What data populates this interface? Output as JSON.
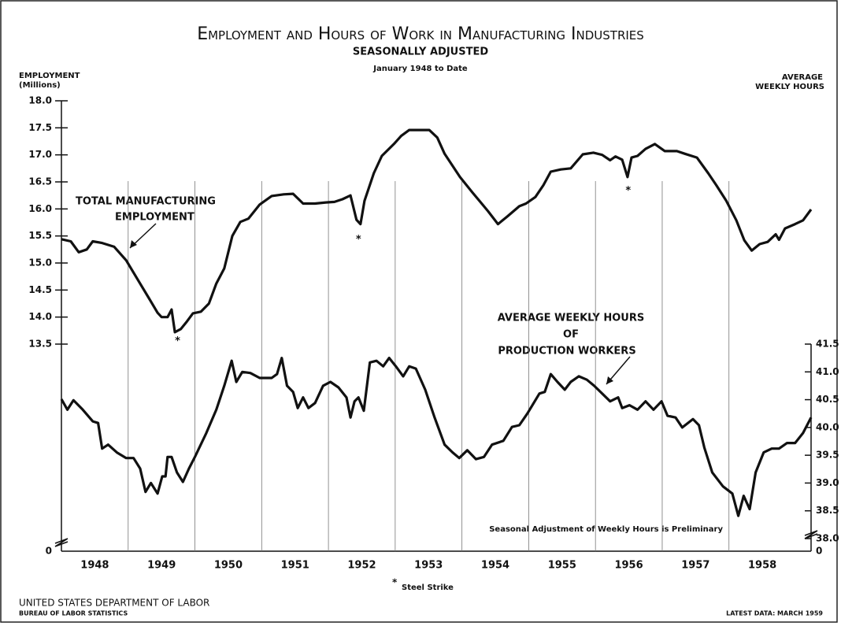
{
  "chart_data": {
    "type": "line",
    "title": "Employment and Hours of Work in Manufacturing Industries",
    "subtitle": "SEASONALLY ADJUSTED",
    "period": "January 1948 to Date",
    "ylabel": [
      "EMPLOYMENT",
      "(Millions)"
    ],
    "y2label": [
      "AVERAGE",
      "WEEKLY HOURS"
    ],
    "xlim": [
      1948.0,
      1959.23
    ],
    "xticks": [
      {
        "value": 1948.5,
        "label": "1948"
      },
      {
        "value": 1949.5,
        "label": "1949"
      },
      {
        "value": 1950.5,
        "label": "1950"
      },
      {
        "value": 1951.5,
        "label": "1951"
      },
      {
        "value": 1952.5,
        "label": "1952"
      },
      {
        "value": 1953.5,
        "label": "1953"
      },
      {
        "value": 1954.5,
        "label": "1954"
      },
      {
        "value": 1955.5,
        "label": "1955"
      },
      {
        "value": 1956.5,
        "label": "1956"
      },
      {
        "value": 1957.5,
        "label": "1957"
      },
      {
        "value": 1958.5,
        "label": "1958"
      }
    ],
    "year_lines": [
      1949,
      1950,
      1951,
      1952,
      1953,
      1954,
      1955,
      1956,
      1957,
      1958
    ],
    "ylim": [
      13.5,
      18.0
    ],
    "yticks": [
      13.5,
      {
        "value": 14,
        "label": "14.0"
      },
      14.5,
      {
        "value": 15,
        "label": "15.0"
      },
      15.5,
      {
        "value": 16,
        "label": "16.0"
      },
      16.5,
      {
        "value": 17,
        "label": "17.0"
      },
      17.5,
      {
        "value": 18,
        "label": "18.0"
      }
    ],
    "ybreak": 0,
    "y2lim": [
      38.0,
      41.5
    ],
    "y2ticks": [
      {
        "value": 38,
        "label": "38.0"
      },
      38.5,
      {
        "value": 39,
        "label": "39.0"
      },
      39.5,
      {
        "value": 40,
        "label": "40.0"
      },
      40.5,
      {
        "value": 41,
        "label": "41.0"
      },
      41.5
    ],
    "y2break": 0,
    "series": [
      {
        "label": [
          "TOTAL MANUFACTURING",
          "EMPLOYMENT"
        ],
        "color": "#111111",
        "axis": "y",
        "x": [
          1948.0,
          1948.14,
          1948.26,
          1948.38,
          1948.47,
          1948.61,
          1948.79,
          1948.97,
          1949.14,
          1949.32,
          1949.44,
          1949.5,
          1949.59,
          1949.65,
          1949.7,
          1949.79,
          1949.88,
          1949.97,
          1950.09,
          1950.21,
          1950.32,
          1950.44,
          1950.56,
          1950.68,
          1950.8,
          1950.97,
          1951.15,
          1951.33,
          1951.47,
          1951.62,
          1951.8,
          1951.96,
          1952.09,
          1952.21,
          1952.33,
          1952.42,
          1952.48,
          1952.54,
          1952.68,
          1952.8,
          1952.98,
          1953.09,
          1953.21,
          1953.51,
          1953.63,
          1953.74,
          1953.97,
          1954.16,
          1954.39,
          1954.54,
          1954.68,
          1954.86,
          1954.96,
          1955.1,
          1955.22,
          1955.33,
          1955.48,
          1955.63,
          1955.81,
          1955.97,
          1956.1,
          1956.22,
          1956.3,
          1956.4,
          1956.48,
          1956.54,
          1956.63,
          1956.75,
          1956.89,
          1957.04,
          1957.22,
          1957.34,
          1957.52,
          1957.69,
          1957.81,
          1957.96,
          1958.11,
          1958.23,
          1958.34,
          1958.46,
          1958.58,
          1958.7,
          1958.75,
          1958.84,
          1958.99,
          1959.11,
          1959.23
        ],
        "values": [
          15.44,
          15.4,
          15.2,
          15.25,
          15.4,
          15.37,
          15.3,
          15.05,
          14.7,
          14.33,
          14.08,
          14.0,
          14.0,
          14.14,
          13.72,
          13.78,
          13.92,
          14.07,
          14.1,
          14.25,
          14.62,
          14.9,
          15.5,
          15.76,
          15.82,
          16.08,
          16.24,
          16.27,
          16.28,
          16.1,
          16.1,
          16.12,
          16.13,
          16.18,
          16.25,
          15.8,
          15.72,
          16.15,
          16.66,
          16.98,
          17.2,
          17.35,
          17.46,
          17.46,
          17.32,
          17.02,
          16.59,
          16.3,
          15.96,
          15.72,
          15.86,
          16.05,
          16.1,
          16.22,
          16.44,
          16.69,
          16.73,
          16.75,
          17.01,
          17.04,
          17.0,
          16.9,
          16.97,
          16.91,
          16.59,
          16.95,
          16.98,
          17.11,
          17.2,
          17.07,
          17.07,
          17.02,
          16.95,
          16.66,
          16.44,
          16.15,
          15.79,
          15.42,
          15.23,
          15.35,
          15.39,
          15.53,
          15.43,
          15.64,
          15.72,
          15.79,
          15.99
        ]
      },
      {
        "label": [
          "AVERAGE WEEKLY HOURS",
          "OF",
          "PRODUCTION WORKERS"
        ],
        "color": "#111111",
        "axis": "y2",
        "x": [
          1948.0,
          1948.09,
          1948.18,
          1948.32,
          1948.47,
          1948.55,
          1948.61,
          1948.7,
          1948.83,
          1948.97,
          1949.08,
          1949.18,
          1949.26,
          1949.34,
          1949.44,
          1949.51,
          1949.56,
          1949.59,
          1949.65,
          1949.73,
          1949.82,
          1949.91,
          1950.0,
          1950.17,
          1950.32,
          1950.44,
          1950.55,
          1950.62,
          1950.71,
          1950.83,
          1950.97,
          1951.15,
          1951.23,
          1951.3,
          1951.38,
          1951.47,
          1951.54,
          1951.62,
          1951.7,
          1951.8,
          1951.92,
          1952.03,
          1952.15,
          1952.27,
          1952.33,
          1952.39,
          1952.45,
          1952.53,
          1952.62,
          1952.72,
          1952.82,
          1952.91,
          1953.01,
          1953.12,
          1953.21,
          1953.31,
          1953.45,
          1953.59,
          1953.74,
          1953.86,
          1953.96,
          1954.08,
          1954.21,
          1954.33,
          1954.45,
          1954.62,
          1954.75,
          1954.86,
          1954.98,
          1955.16,
          1955.24,
          1955.33,
          1955.43,
          1955.54,
          1955.63,
          1955.75,
          1955.87,
          1955.98,
          1956.1,
          1956.22,
          1956.34,
          1956.4,
          1956.51,
          1956.63,
          1956.75,
          1956.87,
          1956.99,
          1957.08,
          1957.2,
          1957.3,
          1957.46,
          1957.55,
          1957.63,
          1957.75,
          1957.91,
          1958.05,
          1958.14,
          1958.22,
          1958.31,
          1958.4,
          1958.52,
          1958.64,
          1958.75,
          1958.87,
          1958.99,
          1959.11,
          1959.23
        ],
        "values": [
          40.51,
          40.32,
          40.49,
          40.32,
          40.11,
          40.08,
          39.62,
          39.69,
          39.55,
          39.45,
          39.45,
          39.26,
          38.84,
          39.0,
          38.81,
          39.12,
          39.12,
          39.47,
          39.47,
          39.19,
          39.02,
          39.26,
          39.47,
          39.9,
          40.32,
          40.75,
          41.2,
          40.82,
          41.0,
          40.98,
          40.89,
          40.89,
          40.96,
          41.25,
          40.75,
          40.64,
          40.35,
          40.54,
          40.35,
          40.44,
          40.75,
          40.82,
          40.72,
          40.54,
          40.18,
          40.47,
          40.54,
          40.3,
          41.17,
          41.2,
          41.1,
          41.25,
          41.1,
          40.92,
          41.1,
          41.06,
          40.68,
          40.18,
          39.69,
          39.55,
          39.45,
          39.59,
          39.43,
          39.47,
          39.69,
          39.76,
          40.01,
          40.04,
          40.25,
          40.61,
          40.64,
          40.96,
          40.82,
          40.68,
          40.82,
          40.92,
          40.86,
          40.75,
          40.61,
          40.47,
          40.54,
          40.35,
          40.4,
          40.32,
          40.47,
          40.32,
          40.47,
          40.21,
          40.18,
          40.0,
          40.15,
          40.04,
          39.64,
          39.19,
          38.94,
          38.81,
          38.41,
          38.77,
          38.53,
          39.19,
          39.55,
          39.62,
          39.62,
          39.72,
          39.72,
          39.9,
          40.18
        ]
      }
    ],
    "strike_marks": [
      {
        "x": 1949.74,
        "y": 13.55,
        "label": "*"
      },
      {
        "x": 1952.45,
        "y": 15.43,
        "label": "*"
      },
      {
        "x": 1956.49,
        "y": 16.33,
        "label": "*"
      }
    ],
    "note": "Seasonal Adjustment of Weekly Hours is Preliminary",
    "footnote_mark": "*",
    "footnote": "Steel Strike",
    "source": "UNITED STATES DEPARTMENT OF LABOR",
    "source_sub": "BUREAU OF LABOR STATISTICS",
    "latest": "LATEST DATA: MARCH 1959"
  }
}
